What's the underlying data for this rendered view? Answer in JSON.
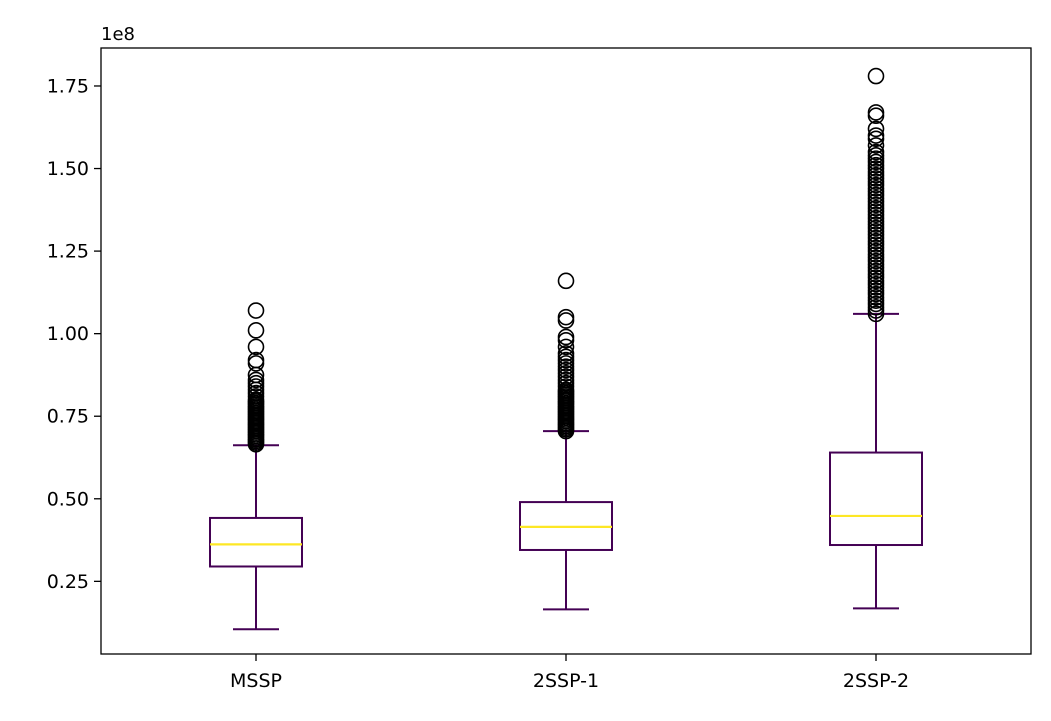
{
  "chart_data": {
    "type": "box",
    "xlabel": "",
    "ylabel": "",
    "y_offset_label": "1e8",
    "ylim": [
      0.03,
      1.865
    ],
    "yticks": [
      0.25,
      0.5,
      0.75,
      1.0,
      1.25,
      1.5,
      1.75
    ],
    "ytick_labels": [
      "0.25",
      "0.50",
      "0.75",
      "1.00",
      "1.25",
      "1.50",
      "1.75"
    ],
    "grid": false,
    "categories": [
      "MSSP",
      "2SSP-1",
      "2SSP-2"
    ],
    "colors": {
      "box": "#440154",
      "median": "#fde725",
      "flier": "#000000"
    },
    "boxes": [
      {
        "name": "MSSP",
        "whisker_low": 0.105,
        "q1": 0.295,
        "median": 0.362,
        "q3": 0.442,
        "whisker_high": 0.662,
        "outliers": [
          0.665,
          0.67,
          0.675,
          0.68,
          0.685,
          0.69,
          0.695,
          0.7,
          0.705,
          0.71,
          0.715,
          0.72,
          0.725,
          0.73,
          0.735,
          0.74,
          0.745,
          0.75,
          0.755,
          0.76,
          0.765,
          0.77,
          0.775,
          0.78,
          0.785,
          0.79,
          0.795,
          0.8,
          0.81,
          0.82,
          0.83,
          0.84,
          0.85,
          0.86,
          0.875,
          0.91,
          0.92,
          0.96,
          1.01,
          1.07
        ]
      },
      {
        "name": "2SSP-1",
        "whisker_low": 0.165,
        "q1": 0.345,
        "median": 0.415,
        "q3": 0.49,
        "whisker_high": 0.705,
        "outliers": [
          0.705,
          0.71,
          0.715,
          0.72,
          0.725,
          0.73,
          0.735,
          0.74,
          0.745,
          0.75,
          0.755,
          0.76,
          0.765,
          0.77,
          0.775,
          0.78,
          0.785,
          0.79,
          0.795,
          0.8,
          0.805,
          0.81,
          0.815,
          0.82,
          0.825,
          0.83,
          0.84,
          0.85,
          0.86,
          0.87,
          0.88,
          0.89,
          0.9,
          0.91,
          0.92,
          0.93,
          0.94,
          0.96,
          0.98,
          0.99,
          1.04,
          1.05,
          1.16
        ]
      },
      {
        "name": "2SSP-2",
        "whisker_low": 0.168,
        "q1": 0.36,
        "median": 0.448,
        "q3": 0.64,
        "whisker_high": 1.06,
        "outliers": [
          1.06,
          1.07,
          1.08,
          1.09,
          1.1,
          1.11,
          1.12,
          1.13,
          1.14,
          1.15,
          1.16,
          1.17,
          1.18,
          1.19,
          1.2,
          1.21,
          1.22,
          1.23,
          1.24,
          1.25,
          1.26,
          1.27,
          1.28,
          1.29,
          1.3,
          1.31,
          1.32,
          1.33,
          1.34,
          1.35,
          1.36,
          1.37,
          1.38,
          1.39,
          1.4,
          1.41,
          1.42,
          1.43,
          1.44,
          1.45,
          1.46,
          1.47,
          1.48,
          1.49,
          1.5,
          1.51,
          1.52,
          1.53,
          1.54,
          1.55,
          1.57,
          1.59,
          1.6,
          1.62,
          1.66,
          1.67,
          1.78
        ]
      }
    ]
  }
}
